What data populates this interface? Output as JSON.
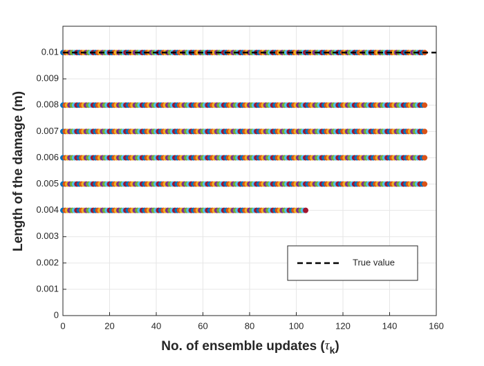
{
  "chart_data": {
    "type": "scatter",
    "xlabel": {
      "text": "No. of ensemble updates (",
      "symbol": "τ",
      "subscript": "k",
      "close": ")"
    },
    "ylabel": "Length of the damage (m)",
    "xlim": [
      0,
      160
    ],
    "xticks": [
      0,
      20,
      40,
      60,
      80,
      100,
      120,
      140,
      160
    ],
    "ylim": [
      0,
      0.011
    ],
    "yticks": [
      0,
      0.001,
      0.002,
      0.003,
      0.004,
      0.005,
      0.006,
      0.007,
      0.008,
      0.009,
      0.01
    ],
    "grid": true,
    "legend": "southeast",
    "point_colors": [
      "#0072BD",
      "#D95319",
      "#EDB120",
      "#7E2F8E",
      "#77AC30",
      "#4DBEEE",
      "#A2142F"
    ],
    "x": [
      0,
      1,
      2,
      3,
      4,
      5,
      6,
      7,
      8,
      9,
      10,
      11,
      12,
      13,
      14,
      15,
      16,
      17,
      18,
      19,
      20,
      21,
      22,
      23,
      24,
      25,
      26,
      27,
      28,
      29,
      30,
      31,
      32,
      33,
      34,
      35,
      36,
      37,
      38,
      39,
      40,
      41,
      42,
      43,
      44,
      45,
      46,
      47,
      48,
      49,
      50,
      51,
      52,
      53,
      54,
      55,
      56,
      57,
      58,
      59,
      60,
      61,
      62,
      63,
      64,
      65,
      66,
      67,
      68,
      69,
      70,
      71,
      72,
      73,
      74,
      75,
      76,
      77,
      78,
      79,
      80,
      81,
      82,
      83,
      84,
      85,
      86,
      87,
      88,
      89,
      90,
      91,
      92,
      93,
      94,
      95,
      96,
      97,
      98,
      99,
      100,
      101,
      102,
      103,
      104,
      105,
      106,
      107,
      108,
      109,
      110,
      111,
      112,
      113,
      114,
      115,
      116,
      117,
      118,
      119,
      120,
      121,
      122,
      123,
      124,
      125,
      126,
      127,
      128,
      129,
      130,
      131,
      132,
      133,
      134,
      135,
      136,
      137,
      138,
      139,
      140,
      141,
      142,
      143,
      144,
      145,
      146,
      147,
      148,
      149,
      150,
      151,
      152,
      153,
      154,
      155
    ],
    "series": [
      {
        "values": [
          0.004,
          0.004,
          0.004,
          0.004,
          0.004,
          0.004,
          0.004,
          0.004,
          0.004,
          0.004,
          0.004,
          0.004,
          0.004,
          0.004,
          0.004,
          0.004,
          0.004,
          0.004,
          0.004,
          0.004,
          0.004,
          0.004,
          0.004,
          0.004,
          0.004,
          0.004,
          0.004,
          0.004,
          0.004,
          0.004,
          0.004,
          0.004,
          0.004,
          0.004,
          0.004,
          0.004,
          0.004,
          0.004,
          0.004,
          0.004,
          0.004,
          0.004,
          0.004,
          0.004,
          0.004,
          0.004,
          0.004,
          0.004,
          0.004,
          0.004,
          0.004,
          0.004,
          0.004,
          0.004,
          0.004,
          0.004,
          0.004,
          0.004,
          0.004,
          0.004,
          0.004,
          0.004,
          0.004,
          0.004,
          0.004,
          0.004,
          0.004,
          0.004,
          0.004,
          0.004,
          0.004,
          0.004,
          0.004,
          0.004,
          0.004,
          0.004,
          0.004,
          0.004,
          0.004,
          0.004,
          0.004,
          0.004,
          0.004,
          0.004,
          0.004,
          0.004,
          0.004,
          0.004,
          0.004,
          0.004,
          0.004,
          0.004,
          0.004,
          0.004,
          0.004,
          0.004,
          0.004,
          0.004,
          0.004,
          0.004,
          0.004,
          0.004,
          0.004,
          0.004,
          0.004,
          null,
          null,
          null,
          null,
          null,
          null,
          null,
          null,
          null,
          null,
          null,
          null,
          null,
          null,
          null,
          null,
          null,
          null,
          null,
          null,
          null,
          null,
          null,
          null,
          null,
          null,
          null,
          null,
          null,
          null,
          null,
          null,
          null,
          null,
          null,
          null,
          null,
          null,
          null,
          null,
          null,
          null,
          null,
          null,
          null,
          null,
          null,
          null,
          null,
          null,
          null
        ]
      },
      {
        "values": [
          0.005,
          0.005,
          0.005,
          0.005,
          0.005,
          0.005,
          0.005,
          0.005,
          0.005,
          0.005,
          0.005,
          0.005,
          0.005,
          0.005,
          0.005,
          0.005,
          0.005,
          0.005,
          0.005,
          0.005,
          0.005,
          0.005,
          0.005,
          0.005,
          0.005,
          0.005,
          0.005,
          0.005,
          0.005,
          0.005,
          0.005,
          0.005,
          0.005,
          0.005,
          0.005,
          0.005,
          0.005,
          0.005,
          0.005,
          0.005,
          0.005,
          0.005,
          0.005,
          0.005,
          0.005,
          0.005,
          0.005,
          0.005,
          0.005,
          0.005,
          0.005,
          0.005,
          0.005,
          0.005,
          0.005,
          0.005,
          0.005,
          0.005,
          0.005,
          0.005,
          0.005,
          0.005,
          0.005,
          0.005,
          0.005,
          0.005,
          0.005,
          0.005,
          0.005,
          0.005,
          0.005,
          0.005,
          0.005,
          0.005,
          0.005,
          0.005,
          0.005,
          0.005,
          0.005,
          0.005,
          0.005,
          0.005,
          0.005,
          0.005,
          0.005,
          0.005,
          0.005,
          0.005,
          0.005,
          0.005,
          0.005,
          0.005,
          0.005,
          0.005,
          0.005,
          0.005,
          0.005,
          0.005,
          0.005,
          0.005,
          0.005,
          0.005,
          0.005,
          0.005,
          0.005,
          0.005,
          0.005,
          0.005,
          0.005,
          0.005,
          0.005,
          0.005,
          0.005,
          0.005,
          0.005,
          0.005,
          0.005,
          0.005,
          0.005,
          0.005,
          0.005,
          0.005,
          0.005,
          0.005,
          0.005,
          0.005,
          0.005,
          0.005,
          0.005,
          0.005,
          0.005,
          0.005,
          0.005,
          0.005,
          0.005,
          0.005,
          0.005,
          0.005,
          0.005,
          0.005,
          0.005,
          0.005,
          0.005,
          0.005,
          0.005,
          0.005,
          0.005,
          0.005,
          0.005,
          0.005,
          0.005,
          0.005,
          0.005,
          0.005,
          0.005,
          0.005
        ]
      },
      {
        "values": [
          0.006,
          0.006,
          0.006,
          0.006,
          0.006,
          0.006,
          0.006,
          0.006,
          0.006,
          0.006,
          0.006,
          0.006,
          0.006,
          0.006,
          0.006,
          0.006,
          0.006,
          0.006,
          0.006,
          0.006,
          0.006,
          0.006,
          0.006,
          0.006,
          0.006,
          0.006,
          0.006,
          0.006,
          0.006,
          0.006,
          0.006,
          0.006,
          0.006,
          0.006,
          0.006,
          0.006,
          0.006,
          0.006,
          0.006,
          0.006,
          0.006,
          0.006,
          0.006,
          0.006,
          0.006,
          0.006,
          0.006,
          0.006,
          0.006,
          0.006,
          0.006,
          0.006,
          0.006,
          0.006,
          0.006,
          0.006,
          0.006,
          0.006,
          0.006,
          0.006,
          0.006,
          0.006,
          0.006,
          0.006,
          0.006,
          0.006,
          0.006,
          0.006,
          0.006,
          0.006,
          0.006,
          0.006,
          0.006,
          0.006,
          0.006,
          0.006,
          0.006,
          0.006,
          0.006,
          0.006,
          0.006,
          0.006,
          0.006,
          0.006,
          0.006,
          0.006,
          0.006,
          0.006,
          0.006,
          0.006,
          0.006,
          0.006,
          0.006,
          0.006,
          0.006,
          0.006,
          0.006,
          0.006,
          0.006,
          0.006,
          0.006,
          0.006,
          0.006,
          0.006,
          0.006,
          0.006,
          0.006,
          0.006,
          0.006,
          0.006,
          0.006,
          0.006,
          0.006,
          0.006,
          0.006,
          0.006,
          0.006,
          0.006,
          0.006,
          0.006,
          0.006,
          0.006,
          0.006,
          0.006,
          0.006,
          0.006,
          0.006,
          0.006,
          0.006,
          0.006,
          0.006,
          0.006,
          0.006,
          0.006,
          0.006,
          0.006,
          0.006,
          0.006,
          0.006,
          0.006,
          0.006,
          0.006,
          0.006,
          0.006,
          0.006,
          0.006,
          0.006,
          0.006,
          0.006,
          0.006,
          0.006,
          0.006,
          0.006,
          0.006,
          0.006,
          0.006
        ]
      },
      {
        "values": [
          0.007,
          0.007,
          0.007,
          0.007,
          0.007,
          0.007,
          0.007,
          0.007,
          0.007,
          0.007,
          0.007,
          0.007,
          0.007,
          0.007,
          0.007,
          0.007,
          0.007,
          0.007,
          0.007,
          0.007,
          0.007,
          0.007,
          0.007,
          0.007,
          0.007,
          0.007,
          0.007,
          0.007,
          0.007,
          0.007,
          0.007,
          0.007,
          0.007,
          0.007,
          0.007,
          0.007,
          0.007,
          0.007,
          0.007,
          0.007,
          0.007,
          0.007,
          0.007,
          0.007,
          0.007,
          0.007,
          0.007,
          0.007,
          0.007,
          0.007,
          0.007,
          0.007,
          0.007,
          0.007,
          0.007,
          0.007,
          0.007,
          0.007,
          0.007,
          0.007,
          0.007,
          0.007,
          0.007,
          0.007,
          0.007,
          0.007,
          0.007,
          0.007,
          0.007,
          0.007,
          0.007,
          0.007,
          0.007,
          0.007,
          0.007,
          0.007,
          0.007,
          0.007,
          0.007,
          0.007,
          0.007,
          0.007,
          0.007,
          0.007,
          0.007,
          0.007,
          0.007,
          0.007,
          0.007,
          0.007,
          0.007,
          0.007,
          0.007,
          0.007,
          0.007,
          0.007,
          0.007,
          0.007,
          0.007,
          0.007,
          0.007,
          0.007,
          0.007,
          0.007,
          0.007,
          0.007,
          0.007,
          0.007,
          0.007,
          0.007,
          0.007,
          0.007,
          0.007,
          0.007,
          0.007,
          0.007,
          0.007,
          0.007,
          0.007,
          0.007,
          0.007,
          0.007,
          0.007,
          0.007,
          0.007,
          0.007,
          0.007,
          0.007,
          0.007,
          0.007,
          0.007,
          0.007,
          0.007,
          0.007,
          0.007,
          0.007,
          0.007,
          0.007,
          0.007,
          0.007,
          0.007,
          0.007,
          0.007,
          0.007,
          0.007,
          0.007,
          0.007,
          0.007,
          0.007,
          0.007,
          0.007,
          0.007,
          0.007,
          0.007,
          0.007,
          0.007
        ]
      },
      {
        "values": [
          0.008,
          0.008,
          0.008,
          0.008,
          0.008,
          0.008,
          0.008,
          0.008,
          0.008,
          0.008,
          0.008,
          0.008,
          0.008,
          0.008,
          0.008,
          0.008,
          0.008,
          0.008,
          0.008,
          0.008,
          0.008,
          0.008,
          0.008,
          0.008,
          0.008,
          0.008,
          0.008,
          0.008,
          0.008,
          0.008,
          0.008,
          0.008,
          0.008,
          0.008,
          0.008,
          0.008,
          0.008,
          0.008,
          0.008,
          0.008,
          0.008,
          0.008,
          0.008,
          0.008,
          0.008,
          0.008,
          0.008,
          0.008,
          0.008,
          0.008,
          0.008,
          0.008,
          0.008,
          0.008,
          0.008,
          0.008,
          0.008,
          0.008,
          0.008,
          0.008,
          0.008,
          0.008,
          0.008,
          0.008,
          0.008,
          0.008,
          0.008,
          0.008,
          0.008,
          0.008,
          0.008,
          0.008,
          0.008,
          0.008,
          0.008,
          0.008,
          0.008,
          0.008,
          0.008,
          0.008,
          0.008,
          0.008,
          0.008,
          0.008,
          0.008,
          0.008,
          0.008,
          0.008,
          0.008,
          0.008,
          0.008,
          0.008,
          0.008,
          0.008,
          0.008,
          0.008,
          0.008,
          0.008,
          0.008,
          0.008,
          0.008,
          0.008,
          0.008,
          0.008,
          0.008,
          0.008,
          0.008,
          0.008,
          0.008,
          0.008,
          0.008,
          0.008,
          0.008,
          0.008,
          0.008,
          0.008,
          0.008,
          0.008,
          0.008,
          0.008,
          0.008,
          0.008,
          0.008,
          0.008,
          0.008,
          0.008,
          0.008,
          0.008,
          0.008,
          0.008,
          0.008,
          0.008,
          0.008,
          0.008,
          0.008,
          0.008,
          0.008,
          0.008,
          0.008,
          0.008,
          0.008,
          0.008,
          0.008,
          0.008,
          0.008,
          0.008,
          0.008,
          0.008,
          0.008,
          0.008,
          0.008,
          0.008,
          0.008,
          0.008,
          0.008,
          0.008
        ]
      },
      {
        "values": [
          0.01,
          0.01,
          0.01,
          0.01,
          0.01,
          0.01,
          0.01,
          0.01,
          0.01,
          0.01,
          0.01,
          0.01,
          0.01,
          0.01,
          0.01,
          0.01,
          0.01,
          0.01,
          0.01,
          0.01,
          0.01,
          0.01,
          0.01,
          0.01,
          0.01,
          0.01,
          0.01,
          0.01,
          0.01,
          0.01,
          0.01,
          0.01,
          0.01,
          0.01,
          0.01,
          0.01,
          0.01,
          0.01,
          0.01,
          0.01,
          0.01,
          0.01,
          0.01,
          0.01,
          0.01,
          0.01,
          0.01,
          0.01,
          0.01,
          0.01,
          0.01,
          0.01,
          0.01,
          0.01,
          0.01,
          0.01,
          0.01,
          0.01,
          0.01,
          0.01,
          0.01,
          0.01,
          0.01,
          0.01,
          0.01,
          0.01,
          0.01,
          0.01,
          0.01,
          0.01,
          0.01,
          0.01,
          0.01,
          0.01,
          0.01,
          0.01,
          0.01,
          0.01,
          0.01,
          0.01,
          0.01,
          0.01,
          0.01,
          0.01,
          0.01,
          0.01,
          0.01,
          0.01,
          0.01,
          0.01,
          0.01,
          0.01,
          0.01,
          0.01,
          0.01,
          0.01,
          0.01,
          0.01,
          0.01,
          0.01,
          0.01,
          0.01,
          0.01,
          0.01,
          0.01,
          0.01,
          0.01,
          0.01,
          0.01,
          0.01,
          0.01,
          0.01,
          0.01,
          0.01,
          0.01,
          0.01,
          0.01,
          0.01,
          0.01,
          0.01,
          0.01,
          0.01,
          0.01,
          0.01,
          0.01,
          0.01,
          0.01,
          0.01,
          0.01,
          0.01,
          0.01,
          0.01,
          0.01,
          0.01,
          0.01,
          0.01,
          0.01,
          0.01,
          0.01,
          0.01,
          0.01,
          0.01,
          0.01,
          0.01,
          0.01,
          0.01,
          0.01,
          0.01,
          0.01,
          0.01,
          0.01,
          0.01,
          0.01,
          0.01,
          0.01,
          0.01
        ]
      }
    ],
    "lines": [
      {
        "name": "True value",
        "x": [
          0,
          160
        ],
        "values": [
          0.01,
          0.01
        ],
        "color": "#000000",
        "dashed": true
      }
    ]
  }
}
